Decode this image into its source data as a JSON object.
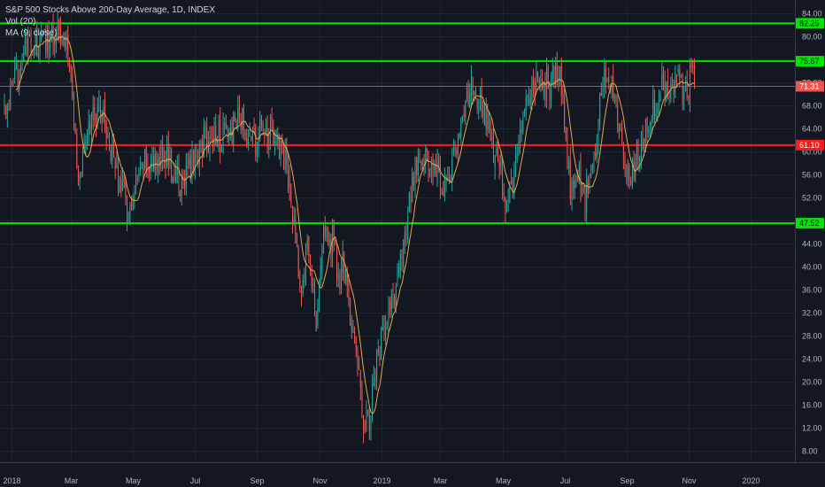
{
  "legend": {
    "title": "S&P 500 Stocks Above 200-Day Average, 1D, INDEX",
    "vol": "Vol (20)",
    "ma": "MA (9, close)"
  },
  "colors": {
    "background": "#131722",
    "grid": "#1f2330",
    "axis_text": "#b2b5be",
    "up": "#26a69a",
    "down": "#ef5350",
    "ma": "#e0a94a",
    "support_line": "#00e600",
    "resistance_line": "#ff1a1a",
    "last_price": "#ef5350"
  },
  "chart_data": {
    "type": "candlestick",
    "title": "S&P 500 Stocks Above 200-Day Average, 1D, INDEX",
    "ylim": [
      6,
      86
    ],
    "y_ticks": [
      "8.00",
      "12.00",
      "16.00",
      "20.00",
      "24.00",
      "28.00",
      "32.00",
      "36.00",
      "40.00",
      "44.00",
      "48.00",
      "52.00",
      "56.00",
      "60.00",
      "64.00",
      "68.00",
      "72.00",
      "76.00",
      "80.00",
      "84.00"
    ],
    "x_ticks": [
      {
        "label": "2018",
        "index": 0
      },
      {
        "label": "Mar",
        "index": 40
      },
      {
        "label": "May",
        "index": 82
      },
      {
        "label": "Jul",
        "index": 124
      },
      {
        "label": "Sep",
        "index": 166
      },
      {
        "label": "Nov",
        "index": 208
      },
      {
        "label": "2019",
        "index": 250
      },
      {
        "label": "Mar",
        "index": 290
      },
      {
        "label": "May",
        "index": 332
      },
      {
        "label": "Jul",
        "index": 374
      },
      {
        "label": "Sep",
        "index": 416
      },
      {
        "label": "Nov",
        "index": 458
      },
      {
        "label": "2020",
        "index": 500
      }
    ],
    "x_range": [
      -8,
      530
    ],
    "horizontal_levels": [
      {
        "value": 82.25,
        "label": "82.25",
        "kind": "support"
      },
      {
        "value": 75.67,
        "label": "75.67",
        "kind": "support"
      },
      {
        "value": 61.1,
        "label": "61.10",
        "kind": "resistance"
      },
      {
        "value": 47.52,
        "label": "47.52",
        "kind": "support"
      }
    ],
    "last_price": {
      "value": 71.31,
      "label": "71.31"
    },
    "anchors": [
      [
        -5,
        67.5
      ],
      [
        0,
        70
      ],
      [
        6,
        76
      ],
      [
        12,
        78
      ],
      [
        20,
        79
      ],
      [
        28,
        80
      ],
      [
        34,
        82
      ],
      [
        38,
        78
      ],
      [
        41,
        70
      ],
      [
        43,
        62
      ],
      [
        46,
        54
      ],
      [
        50,
        62
      ],
      [
        54,
        65
      ],
      [
        58,
        68
      ],
      [
        62,
        66
      ],
      [
        66,
        62
      ],
      [
        70,
        57
      ],
      [
        74,
        55
      ],
      [
        78,
        49
      ],
      [
        82,
        51
      ],
      [
        86,
        55
      ],
      [
        90,
        58
      ],
      [
        94,
        58
      ],
      [
        98,
        57
      ],
      [
        102,
        61
      ],
      [
        106,
        58
      ],
      [
        110,
        56
      ],
      [
        114,
        54
      ],
      [
        118,
        56
      ],
      [
        122,
        58
      ],
      [
        126,
        60
      ],
      [
        130,
        62
      ],
      [
        134,
        61
      ],
      [
        138,
        64
      ],
      [
        142,
        62
      ],
      [
        146,
        63
      ],
      [
        150,
        64
      ],
      [
        154,
        66
      ],
      [
        158,
        64
      ],
      [
        162,
        62
      ],
      [
        166,
        62
      ],
      [
        170,
        64
      ],
      [
        174,
        63
      ],
      [
        178,
        62
      ],
      [
        182,
        60
      ],
      [
        186,
        58
      ],
      [
        188,
        54
      ],
      [
        190,
        48
      ],
      [
        192,
        45
      ],
      [
        194,
        40
      ],
      [
        196,
        37
      ],
      [
        198,
        41
      ],
      [
        200,
        46
      ],
      [
        202,
        42
      ],
      [
        204,
        35
      ],
      [
        206,
        31
      ],
      [
        208,
        38
      ],
      [
        210,
        44
      ],
      [
        212,
        46
      ],
      [
        214,
        42
      ],
      [
        216,
        44
      ],
      [
        218,
        46
      ],
      [
        220,
        40
      ],
      [
        222,
        37
      ],
      [
        224,
        40
      ],
      [
        226,
        38
      ],
      [
        228,
        34
      ],
      [
        230,
        30
      ],
      [
        232,
        26
      ],
      [
        234,
        22
      ],
      [
        236,
        18
      ],
      [
        238,
        12
      ],
      [
        240,
        16
      ],
      [
        242,
        14
      ],
      [
        244,
        18
      ],
      [
        246,
        22
      ],
      [
        248,
        24
      ],
      [
        250,
        27
      ],
      [
        254,
        31
      ],
      [
        258,
        34
      ],
      [
        262,
        38
      ],
      [
        266,
        44
      ],
      [
        268,
        48
      ],
      [
        270,
        52
      ],
      [
        272,
        56
      ],
      [
        276,
        58
      ],
      [
        280,
        59
      ],
      [
        284,
        57
      ],
      [
        288,
        56
      ],
      [
        292,
        54
      ],
      [
        296,
        56
      ],
      [
        300,
        60
      ],
      [
        304,
        64
      ],
      [
        308,
        69
      ],
      [
        312,
        71
      ],
      [
        316,
        70
      ],
      [
        320,
        66
      ],
      [
        324,
        62
      ],
      [
        328,
        58
      ],
      [
        332,
        55
      ],
      [
        334,
        52
      ],
      [
        336,
        50
      ],
      [
        338,
        53
      ],
      [
        340,
        56
      ],
      [
        342,
        60
      ],
      [
        344,
        62
      ],
      [
        346,
        65
      ],
      [
        348,
        68
      ],
      [
        352,
        71
      ],
      [
        356,
        73
      ],
      [
        360,
        72
      ],
      [
        364,
        71
      ],
      [
        368,
        73
      ],
      [
        370,
        74
      ],
      [
        372,
        70
      ],
      [
        374,
        64
      ],
      [
        376,
        57
      ],
      [
        378,
        54
      ],
      [
        380,
        52
      ],
      [
        384,
        56
      ],
      [
        388,
        51
      ],
      [
        392,
        56
      ],
      [
        396,
        62
      ],
      [
        398,
        68
      ],
      [
        400,
        72
      ],
      [
        404,
        73
      ],
      [
        408,
        71
      ],
      [
        410,
        65
      ],
      [
        412,
        62
      ],
      [
        414,
        58
      ],
      [
        416,
        56
      ],
      [
        418,
        54
      ],
      [
        420,
        57
      ],
      [
        424,
        60
      ],
      [
        428,
        64
      ],
      [
        432,
        66
      ],
      [
        436,
        69
      ],
      [
        440,
        71
      ],
      [
        444,
        72
      ],
      [
        448,
        72
      ],
      [
        452,
        73
      ],
      [
        454,
        71
      ],
      [
        456,
        73
      ],
      [
        458,
        72
      ],
      [
        460,
        74
      ],
      [
        462,
        71
      ]
    ],
    "ma_period": 9
  }
}
